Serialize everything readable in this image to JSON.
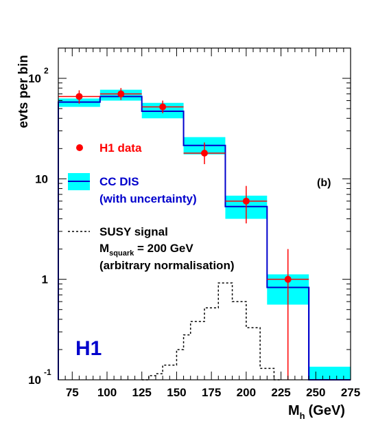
{
  "chart_data": {
    "type": "histogram",
    "title": "",
    "xlabel_main": "M",
    "xlabel_sub": "h",
    "xlabel_unit": "(GeV)",
    "ylabel": "evts per bin",
    "xlim": [
      65,
      275
    ],
    "ylim": [
      0.1,
      200
    ],
    "yscale": "log",
    "x_ticks": [
      75,
      100,
      125,
      150,
      175,
      200,
      225,
      250,
      275
    ],
    "y_ticks": [
      {
        "value": 0.1,
        "base": "10",
        "exp": "-1"
      },
      {
        "value": 1,
        "base": "1",
        "exp": ""
      },
      {
        "value": 10,
        "base": "10",
        "exp": ""
      },
      {
        "value": 100,
        "base": "10",
        "exp": "2"
      }
    ],
    "panel_label": "(b)",
    "experiment_label": "H1",
    "colors": {
      "data": "#ff0000",
      "mc_line": "#0000cc",
      "mc_band": "#00ffff",
      "signal": "#000000",
      "h1_logo": "#0000cc",
      "frame": "#000000"
    },
    "legend": {
      "data_label": "H1 data",
      "mc_label_line1": "CC DIS",
      "mc_label_line2": "(with uncertainty)",
      "signal_line1": "SUSY signal",
      "signal_M": "M",
      "signal_sub": "squark",
      "signal_value": " = 200 GeV",
      "signal_line3": "(arbitrary normalisation)"
    },
    "cc_dis": {
      "bin_edges": [
        65,
        95,
        125,
        155,
        185,
        215,
        245,
        275
      ],
      "values": [
        58,
        66,
        47,
        21.5,
        5.3,
        0.83,
        0.1
      ],
      "band_low": [
        52,
        60,
        40,
        17.5,
        4.0,
        0.56,
        0.1
      ],
      "band_high": [
        63,
        77,
        57,
        26,
        6.8,
        1.12,
        0.135
      ]
    },
    "h1_data": [
      {
        "x": 80,
        "y": 66,
        "err_low": 56,
        "err_high": 76
      },
      {
        "x": 110,
        "y": 70,
        "err_low": 61,
        "err_high": 80
      },
      {
        "x": 140,
        "y": 52,
        "err_low": 45,
        "err_high": 60
      },
      {
        "x": 170,
        "y": 18,
        "err_low": 14,
        "err_high": 23
      },
      {
        "x": 200,
        "y": 6,
        "err_low": 3.6,
        "err_high": 8.5
      },
      {
        "x": 230,
        "y": 1,
        "err_low": 0.1,
        "err_high": 2
      }
    ],
    "susy_signal": {
      "bin_edges": [
        125,
        130,
        135,
        140,
        145,
        150,
        155,
        160,
        165,
        170,
        175,
        180,
        185,
        190,
        195,
        200,
        205,
        210,
        215,
        220,
        225
      ],
      "values": [
        0.1,
        0.11,
        0.115,
        0.14,
        0.14,
        0.2,
        0.28,
        0.38,
        0.38,
        0.52,
        0.52,
        0.92,
        0.92,
        0.6,
        0.6,
        0.33,
        0.33,
        0.13,
        0.13,
        0.1
      ]
    }
  }
}
